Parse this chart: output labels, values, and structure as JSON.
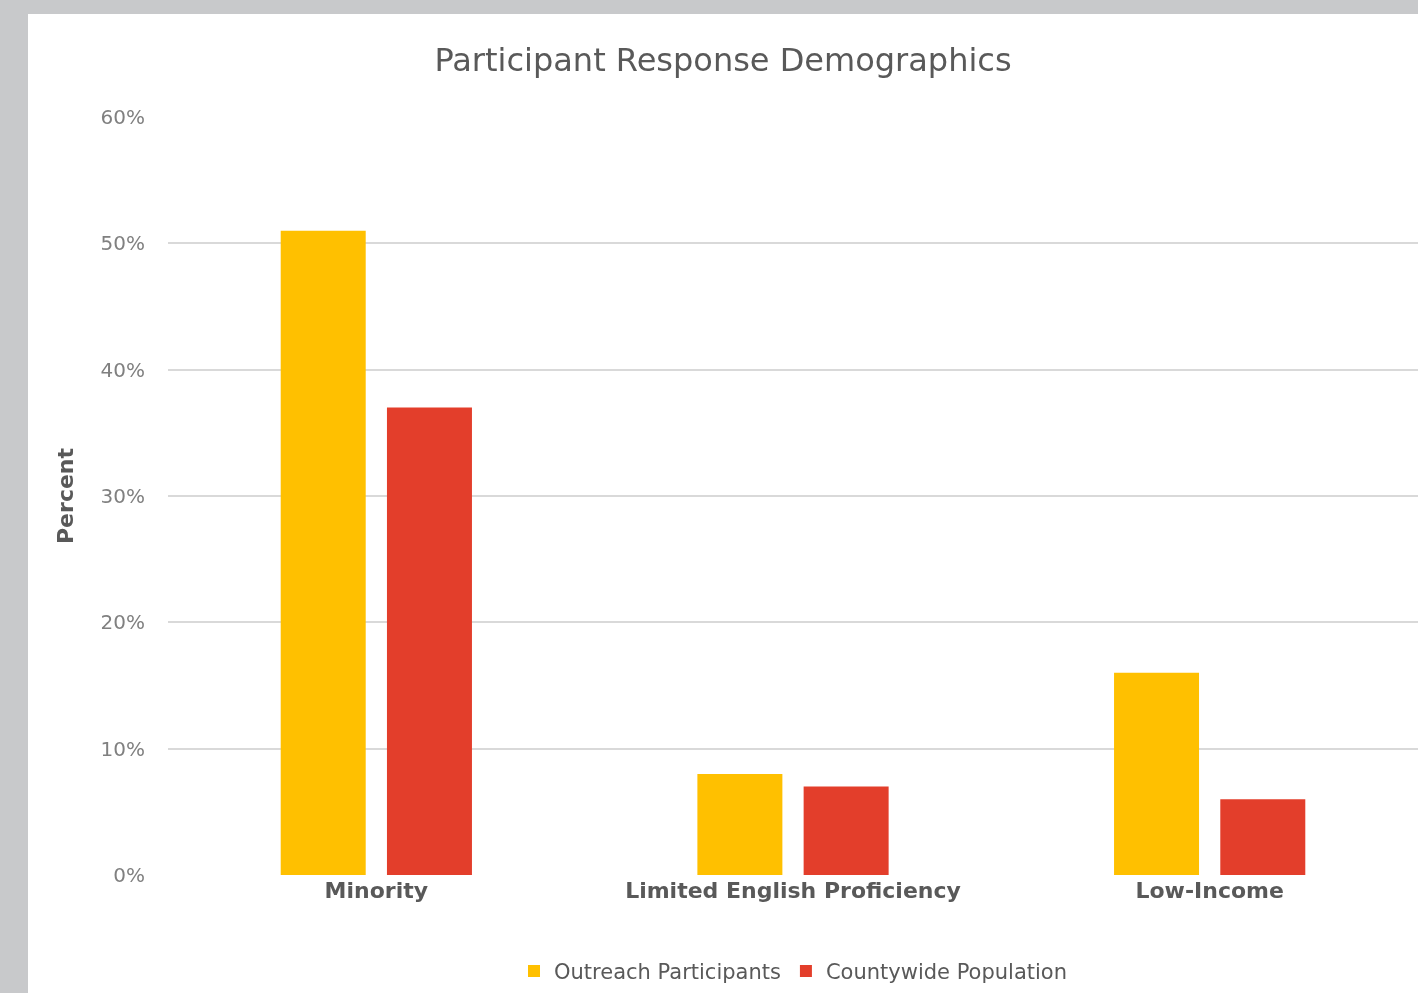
{
  "chart_data": {
    "type": "bar",
    "title": "Participant Response Demographics",
    "ylabel": "Percent",
    "categories": [
      "Minority",
      "Limited English Proficiency",
      "Low-Income"
    ],
    "series": [
      {
        "name": "Outreach Participants",
        "color": "#ffc000",
        "values": [
          51,
          8,
          16
        ]
      },
      {
        "name": "Countywide Population",
        "color": "#e33e2b",
        "values": [
          37,
          7,
          6
        ]
      }
    ],
    "ylim": [
      0,
      60
    ],
    "yticks": [
      {
        "value": 0,
        "label": "0%"
      },
      {
        "value": 10,
        "label": "10%"
      },
      {
        "value": 20,
        "label": "20%"
      },
      {
        "value": 30,
        "label": "30%"
      },
      {
        "value": 40,
        "label": "40%"
      },
      {
        "value": 50,
        "label": "50%"
      },
      {
        "value": 60,
        "label": "60%"
      }
    ],
    "grid": "y",
    "legend": "bottom"
  }
}
